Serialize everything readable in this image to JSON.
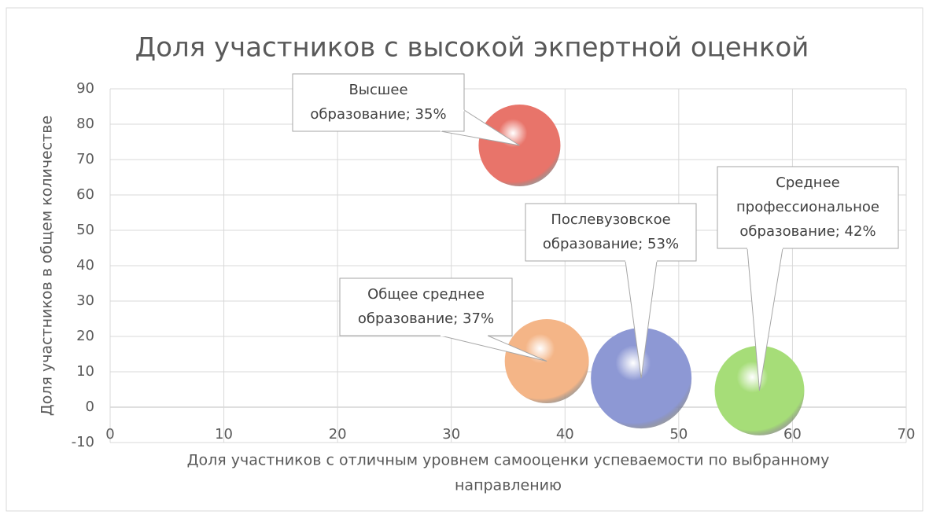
{
  "chart_data": {
    "type": "bubble",
    "title": "Доля участников с высокой экпертной оценкой",
    "x_label": [
      "Доля участников с отличным уровнем самооценки успеваемости по выбранному",
      "направлению"
    ],
    "y_label": "Доля участников в общем количестве",
    "xlim": [
      0,
      70
    ],
    "xticks": [
      0,
      10,
      20,
      30,
      40,
      50,
      60,
      70
    ],
    "ylim": [
      -10,
      90
    ],
    "yticks": [
      -10,
      0,
      10,
      20,
      30,
      40,
      50,
      60,
      70,
      80,
      90
    ],
    "grid": true,
    "points": [
      {
        "x": 36,
        "y": 74,
        "size": 35,
        "color": "#e8746a",
        "label": [
          "Высшее",
          "образование; 35%"
        ]
      },
      {
        "x": 38.4,
        "y": 13,
        "size": 37,
        "color": "#f4b587",
        "label": [
          "Общее среднее",
          "образование; 37%"
        ]
      },
      {
        "x": 46.7,
        "y": 8.2,
        "size": 53,
        "color": "#8d98d4",
        "label": [
          "Послевузовское",
          "образование; 53%"
        ]
      },
      {
        "x": 57.1,
        "y": 4.7,
        "size": 42,
        "color": "#a6dd78",
        "label": [
          "Среднее",
          "профессиональное",
          "образование; 42%"
        ]
      }
    ]
  }
}
